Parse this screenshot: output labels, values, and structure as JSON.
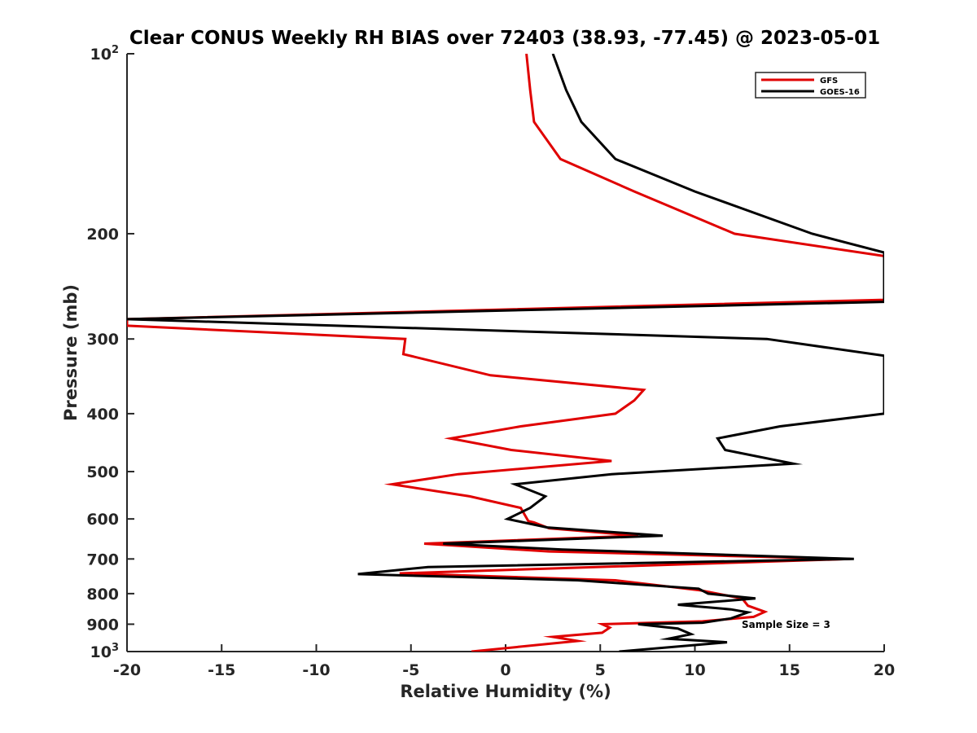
{
  "chart_data": {
    "type": "line",
    "title": "Clear CONUS Weekly RH BIAS over 72403 (38.93, -77.45) @ 2023-05-01",
    "xlabel": "Relative Humidity (%)",
    "ylabel": "Pressure (mb)",
    "xlim": [
      -20,
      20
    ],
    "ylim": [
      100,
      1000
    ],
    "y_scale": "log",
    "y_reversed": true,
    "grid": false,
    "legend_position": "top-right",
    "x_ticks": [
      "-20",
      "-15",
      "-10",
      "-5",
      "0",
      "5",
      "10",
      "15",
      "20"
    ],
    "y_ticks": [
      {
        "value": 100,
        "base": "10",
        "exp": "2"
      },
      {
        "value": 200,
        "label": "200"
      },
      {
        "value": 300,
        "label": "300"
      },
      {
        "value": 400,
        "label": "400"
      },
      {
        "value": 500,
        "label": "500"
      },
      {
        "value": 600,
        "label": "600"
      },
      {
        "value": 700,
        "label": "700"
      },
      {
        "value": 800,
        "label": "800"
      },
      {
        "value": 900,
        "label": "900"
      },
      {
        "value": 1000,
        "base": "10",
        "exp": "3"
      }
    ],
    "annotation": "Sample Size = 3",
    "series": [
      {
        "name": "GFS",
        "color": "#e00000",
        "x": [
          1.1,
          1.3,
          1.5,
          2.9,
          6.8,
          12.1,
          20.0,
          20.0,
          -20.0,
          -20.0,
          -5.3,
          -5.4,
          -0.8,
          7.3,
          6.8,
          5.8,
          0.8,
          -2.9,
          0.3,
          5.6,
          -2.5,
          -6.0,
          -1.9,
          0.8,
          1.2,
          1.5,
          2.3,
          7.0,
          -4.3,
          2.3,
          18.2,
          -5.6,
          5.8,
          10.3,
          12.5,
          12.8,
          13.7,
          13.1,
          10.4,
          5.1,
          5.5,
          5.1,
          2.5,
          3.8,
          -1.8
        ],
        "y": [
          100,
          115,
          130,
          150,
          170,
          200,
          218,
          258,
          278,
          285,
          300,
          318,
          345,
          365,
          380,
          400,
          420,
          440,
          460,
          480,
          505,
          525,
          550,
          575,
          605,
          608,
          622,
          640,
          660,
          680,
          700,
          740,
          760,
          790,
          815,
          838,
          858,
          875,
          890,
          900,
          912,
          930,
          945,
          960,
          1000
        ]
      },
      {
        "name": "GOES-16",
        "color": "#000000",
        "x": [
          2.5,
          3.2,
          4.0,
          5.8,
          10.0,
          16.2,
          20.0,
          20.0,
          -20.0,
          13.8,
          20.0,
          20.0,
          14.5,
          11.2,
          11.6,
          15.2,
          5.6,
          0.5,
          2.1,
          1.3,
          0.1,
          2.2,
          8.3,
          -3.3,
          3.0,
          18.4,
          -4.1,
          -7.8,
          3.8,
          10.2,
          10.7,
          13.2,
          9.1,
          11.9,
          12.8,
          11.9,
          10.4,
          7.0,
          9.1,
          9.8,
          8.6,
          11.7,
          6.0
        ],
        "y": [
          100,
          115,
          130,
          150,
          170,
          200,
          215,
          260,
          278,
          300,
          320,
          400,
          420,
          440,
          460,
          485,
          505,
          525,
          550,
          575,
          600,
          620,
          640,
          660,
          675,
          700,
          722,
          742,
          760,
          785,
          800,
          815,
          835,
          850,
          860,
          880,
          895,
          900,
          915,
          935,
          952,
          965,
          1000
        ]
      }
    ]
  }
}
